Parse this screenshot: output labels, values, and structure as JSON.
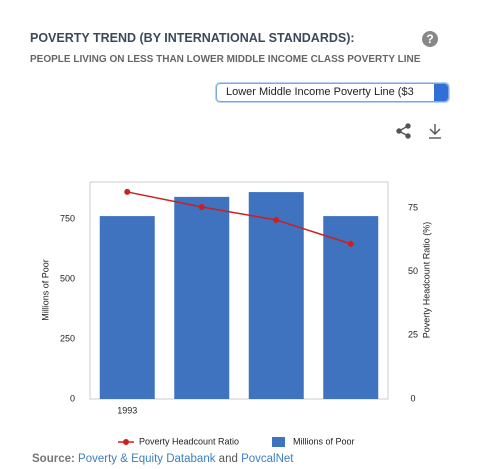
{
  "header": {
    "title": "POVERTY TREND (BY INTERNATIONAL STANDARDS):",
    "subtitle": "PEOPLE LIVING ON LESS THAN LOWER MIDDLE INCOME CLASS POVERTY LINE",
    "help": "?",
    "dropdown": "Lower Middle Income Poverty Line ($3"
  },
  "chart_data": {
    "type": "combo",
    "categories": [
      "1993",
      null,
      null,
      null
    ],
    "ylabel": "Millions of Poor",
    "y2label": "Poverty Headcount Ratio (%)",
    "ylim": [
      0,
      904
    ],
    "yticks": [
      0,
      250,
      500,
      750
    ],
    "y2lim": [
      0,
      85.2
    ],
    "y2ticks": [
      0,
      25,
      50,
      75
    ],
    "series": [
      {
        "name": "Poverty Headcount Ratio",
        "type": "line",
        "axis": "y2",
        "color": "#cc2020",
        "values": [
          81.3,
          75.4,
          70.3,
          60.9
        ]
      },
      {
        "name": "Millions of Poor",
        "type": "bar",
        "color": "#3f73c0",
        "values": [
          762,
          842,
          862,
          762
        ]
      }
    ]
  },
  "source": {
    "label": "Source:",
    "link1": "Poverty & Equity Databank",
    "joiner": "and",
    "link2": "PovcalNet"
  }
}
